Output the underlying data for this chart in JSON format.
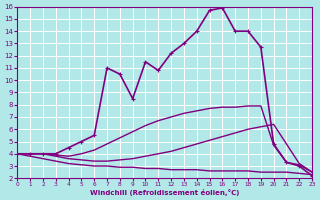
{
  "xlabel": "Windchill (Refroidissement éolien,°C)",
  "xlim": [
    0,
    23
  ],
  "ylim": [
    2,
    16
  ],
  "xticks": [
    0,
    1,
    2,
    3,
    4,
    5,
    6,
    7,
    8,
    9,
    10,
    11,
    12,
    13,
    14,
    15,
    16,
    17,
    18,
    19,
    20,
    21,
    22,
    23
  ],
  "yticks": [
    2,
    3,
    4,
    5,
    6,
    7,
    8,
    9,
    10,
    11,
    12,
    13,
    14,
    15,
    16
  ],
  "bg_color": "#b2e8e8",
  "line_color": "#800080",
  "grid_color": "#ffffff",
  "lines": [
    {
      "x": [
        0,
        1,
        2,
        3,
        4,
        5,
        6,
        7,
        8,
        9,
        10,
        11,
        12,
        13,
        14,
        15,
        16,
        17,
        18,
        19,
        20,
        21,
        22,
        23
      ],
      "y": [
        4,
        3.8,
        3.6,
        3.4,
        3.2,
        3.1,
        3.0,
        3.0,
        2.9,
        2.9,
        2.8,
        2.8,
        2.7,
        2.7,
        2.7,
        2.6,
        2.6,
        2.6,
        2.6,
        2.5,
        2.5,
        2.5,
        2.4,
        2.3
      ],
      "marker": null,
      "lw": 1.0
    },
    {
      "x": [
        0,
        1,
        2,
        3,
        4,
        5,
        6,
        7,
        8,
        9,
        10,
        11,
        12,
        13,
        14,
        15,
        16,
        17,
        18,
        19,
        20,
        21,
        22,
        23
      ],
      "y": [
        4,
        4,
        4,
        3.8,
        3.6,
        3.5,
        3.4,
        3.4,
        3.5,
        3.6,
        3.8,
        4.0,
        4.2,
        4.5,
        4.8,
        5.1,
        5.4,
        5.7,
        6.0,
        6.2,
        6.4,
        4.8,
        3.2,
        2.5
      ],
      "marker": null,
      "lw": 1.0
    },
    {
      "x": [
        0,
        1,
        2,
        3,
        4,
        5,
        6,
        7,
        8,
        9,
        10,
        11,
        12,
        13,
        14,
        15,
        16,
        17,
        18,
        19,
        20,
        21,
        22,
        23
      ],
      "y": [
        4,
        4,
        4,
        3.9,
        3.8,
        4.0,
        4.3,
        4.8,
        5.3,
        5.8,
        6.3,
        6.7,
        7.0,
        7.3,
        7.5,
        7.7,
        7.8,
        7.8,
        7.9,
        7.9,
        4.7,
        3.3,
        3.1,
        2.5
      ],
      "marker": null,
      "lw": 1.0
    },
    {
      "x": [
        0,
        1,
        2,
        3,
        4,
        5,
        6,
        7,
        8,
        9,
        10,
        11,
        12,
        13,
        14,
        15,
        16,
        17,
        18,
        19,
        20,
        21,
        22,
        23
      ],
      "y": [
        4,
        4,
        4,
        4,
        4.5,
        5.0,
        5.5,
        11.0,
        10.5,
        8.5,
        11.5,
        10.8,
        12.2,
        13.0,
        14.0,
        15.7,
        15.9,
        14.0,
        14.0,
        12.7,
        4.8,
        3.3,
        3.0,
        2.2
      ],
      "marker": "+",
      "lw": 1.2
    }
  ]
}
